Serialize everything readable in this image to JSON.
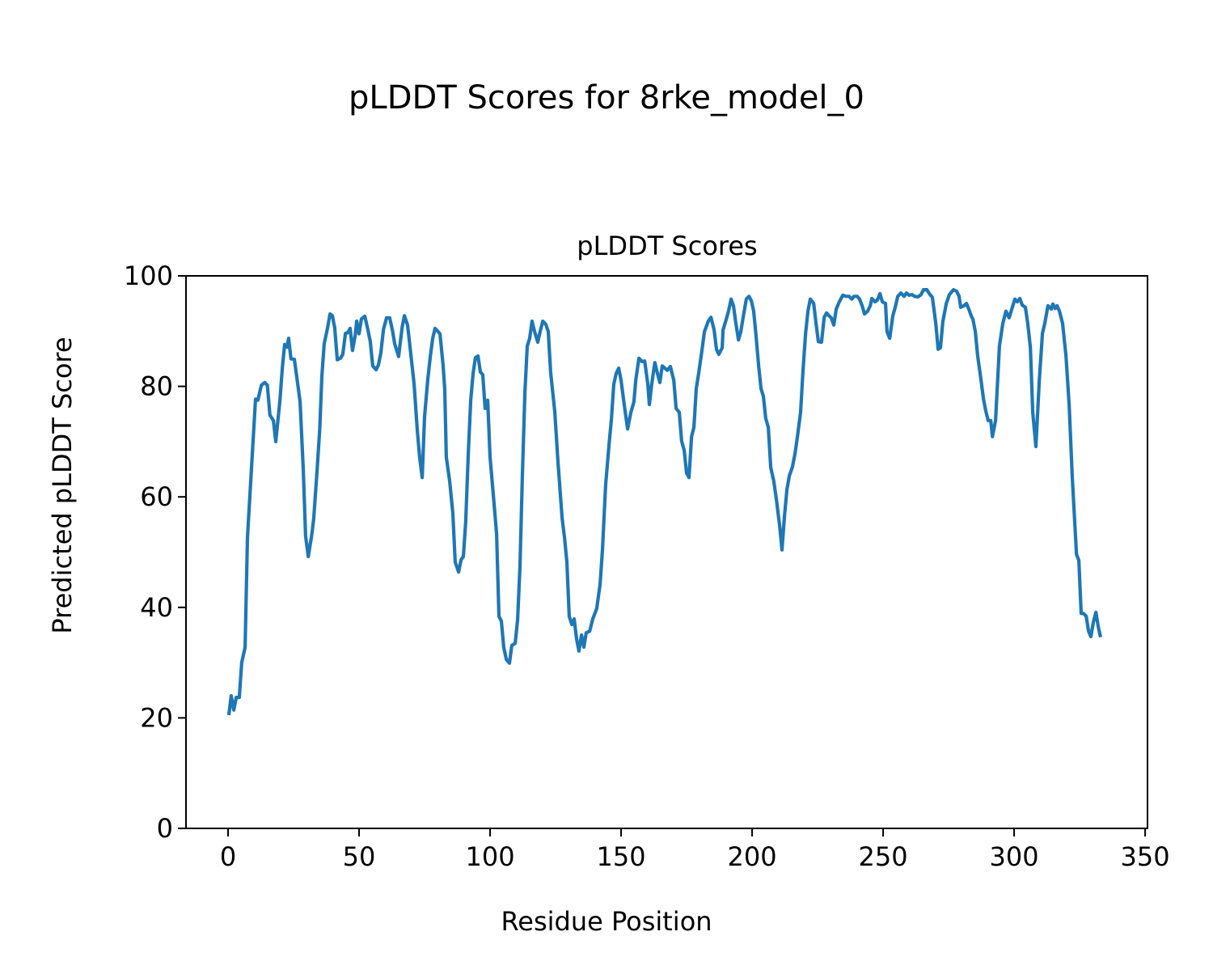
{
  "chart_data": {
    "type": "line",
    "suptitle": "pLDDT Scores for 8rke_model_0",
    "title": "pLDDT Scores",
    "xlabel": "Residue Position",
    "ylabel": "Predicted pLDDT Score",
    "xlim": [
      -16.05,
      350.9
    ],
    "ylim": [
      0,
      100
    ],
    "xticks": [
      0,
      50,
      100,
      150,
      200,
      250,
      300,
      350
    ],
    "yticks": [
      0,
      20,
      40,
      60,
      80,
      100
    ],
    "xtick_labels": [
      "0",
      "50",
      "100",
      "150",
      "200",
      "250",
      "300",
      "350"
    ],
    "ytick_labels": [
      "0",
      "20",
      "40",
      "60",
      "80",
      "100"
    ],
    "grid": false,
    "series": [
      {
        "name": "pLDDT",
        "color": "#1f77b4",
        "x": [
          0.3,
          1.2,
          2.2,
          3.1,
          4.3,
          5.2,
          6.5,
          7.4,
          9.3,
          10.5,
          11.4,
          12.7,
          14,
          15,
          16,
          17.3,
          18.2,
          19.8,
          20.7,
          21.6,
          22.5,
          23.1,
          24,
          25.3,
          26.5,
          27.5,
          28.7,
          29.6,
          30.6,
          32,
          32.7,
          34,
          35,
          35.8,
          36.7,
          38,
          38.9,
          39.8,
          40.7,
          41.7,
          42.9,
          43.8,
          44.8,
          45.7,
          46.6,
          47.5,
          48.5,
          49.1,
          50,
          50.9,
          52.2,
          53.4,
          54.3,
          55.2,
          56.5,
          57.4,
          58.3,
          59.3,
          60.5,
          61.7,
          62.7,
          63.6,
          65.1,
          66.4,
          67.3,
          68.5,
          69.4,
          71,
          72.2,
          73.1,
          74.1,
          75,
          76.2,
          77.2,
          78.1,
          79,
          80,
          80.9,
          82.1,
          82.7,
          83.3,
          84.6,
          85.8,
          86.7,
          88,
          88.9,
          89.8,
          90.7,
          91.7,
          92.6,
          93.5,
          94.4,
          95.4,
          96.3,
          97.2,
          98.1,
          99.1,
          100,
          101.2,
          102.5,
          103.4,
          104.3,
          105.2,
          106.2,
          107.4,
          108.3,
          109.6,
          110.5,
          111.4,
          112.3,
          113.3,
          114.2,
          115.1,
          116,
          117,
          118.2,
          119.1,
          120.1,
          121.3,
          122.2,
          123.1,
          124.7,
          125.9,
          127.5,
          128.4,
          129.3,
          130.2,
          131.2,
          132.1,
          133,
          133.9,
          134.9,
          135.8,
          136.7,
          138,
          139.2,
          140.7,
          142,
          142.9,
          144.1,
          145.4,
          146.3,
          147.2,
          148.1,
          149.1,
          150,
          151.2,
          152.5,
          153.7,
          154.9,
          155.6,
          156.8,
          158,
          159,
          160.2,
          160.8,
          161.7,
          162.9,
          163.9,
          164.8,
          165.7,
          166.7,
          167.6,
          168.8,
          170.1,
          171,
          172.2,
          173.1,
          174.1,
          175,
          175.9,
          176.9,
          177.8,
          178.7,
          179.6,
          180.9,
          181.8,
          183.3,
          184.3,
          185.5,
          186.4,
          187.3,
          188.6,
          188.9,
          190.1,
          191,
          192,
          192.9,
          193.8,
          194.8,
          195.7,
          196.6,
          197.8,
          198.8,
          199.7,
          200.6,
          201.5,
          202.5,
          203.4,
          204.3,
          205.2,
          206.2,
          207.1,
          208.3,
          209.3,
          210.5,
          211.4,
          212.3,
          213.3,
          214.2,
          215.4,
          216.4,
          217.3,
          218.5,
          219.4,
          220.4,
          221.3,
          222.2,
          223.5,
          224.4,
          225.3,
          226.5,
          227.5,
          228.4,
          229.3,
          230.2,
          231.2,
          232.1,
          233.3,
          234.6,
          235.8,
          237,
          238,
          238.9,
          240.1,
          241,
          242,
          242.9,
          244.1,
          245.1,
          245.7,
          246.9,
          247.8,
          248.8,
          249.7,
          250.9,
          251.5,
          252.5,
          253.7,
          254.6,
          255.6,
          256.8,
          258,
          258.9,
          259.9,
          261.1,
          262,
          263.3,
          264.5,
          265.4,
          266.7,
          267.6,
          268.8,
          270.1,
          271,
          271.9,
          272.8,
          274.1,
          275.3,
          276.9,
          278.1,
          279,
          279.6,
          280.9,
          281.8,
          282.7,
          283.6,
          284.3,
          285.2,
          286.1,
          287.3,
          288.3,
          289.2,
          290.1,
          291.1,
          291.7,
          292.9,
          294.4,
          295.7,
          296.9,
          298.1,
          299.1,
          300.3,
          301.2,
          302.2,
          303.1,
          304.3,
          305.2,
          306.2,
          307.1,
          308.3,
          309.6,
          310.8,
          311.7,
          312.9,
          314.2,
          314.8,
          315.7,
          316.4,
          317.3,
          318.5,
          319.8,
          321,
          322.2,
          323.8,
          324.7,
          325.6,
          326.5,
          327.5,
          328.4,
          329.3,
          330.2,
          331.2,
          332.1,
          333
        ],
        "y": [
          20.5,
          24,
          21.4,
          23.7,
          23.7,
          30,
          32.8,
          52.6,
          68,
          77.7,
          77.5,
          80.2,
          80.7,
          80.2,
          74.8,
          73.8,
          70,
          77.5,
          83.3,
          87.6,
          87.1,
          88.7,
          85,
          84.9,
          80.7,
          77.2,
          65,
          52.9,
          49.2,
          53.3,
          56.2,
          65,
          72.3,
          81.8,
          87.7,
          90.6,
          93.1,
          92.8,
          90.6,
          84.8,
          85.1,
          85.8,
          89.6,
          89.7,
          90.5,
          86.5,
          89.2,
          91.8,
          89.5,
          92.2,
          92.7,
          90.2,
          88.1,
          83.7,
          83,
          83.9,
          86,
          90.3,
          92.4,
          92.4,
          90.2,
          87.7,
          85.4,
          90.6,
          92.8,
          91.1,
          87.3,
          80.4,
          72.3,
          67.2,
          63.5,
          74.5,
          81.1,
          85.5,
          88.7,
          90.5,
          90,
          89.5,
          83.7,
          79.4,
          67.2,
          62.8,
          57,
          48.2,
          46.4,
          48.6,
          49.2,
          55.5,
          67.9,
          77.5,
          82.3,
          85.2,
          85.5,
          82.6,
          82.1,
          76,
          77.5,
          67.2,
          60.6,
          53.3,
          38.4,
          37.5,
          32.8,
          30.6,
          29.9,
          33.1,
          33.5,
          37.8,
          47.4,
          63.5,
          78.9,
          87.3,
          88.7,
          91.8,
          89.9,
          88,
          89.9,
          91.8,
          91.2,
          89.9,
          82.6,
          75.3,
          66.5,
          56.2,
          52.6,
          48.2,
          38.4,
          36.9,
          37.9,
          34.3,
          32.1,
          35,
          32.8,
          35.4,
          35.7,
          37.9,
          39.8,
          44.2,
          50.4,
          62.1,
          69.4,
          74.1,
          80.4,
          82.3,
          83.3,
          81.1,
          76.7,
          72.3,
          75.2,
          77.2,
          81.1,
          85.1,
          84.5,
          84.6,
          80.4,
          76.7,
          80.4,
          84.3,
          82.3,
          80.7,
          83.7,
          83.3,
          82.9,
          83.6,
          81.1,
          76,
          75.3,
          70.1,
          68.4,
          64.3,
          63.5,
          70.9,
          72.6,
          79.6,
          82.3,
          86.7,
          89.9,
          91.8,
          92.5,
          90.2,
          86.7,
          85.8,
          87,
          90.2,
          92.1,
          93.6,
          95.8,
          94.6,
          91.4,
          88.4,
          89.9,
          92.5,
          95.8,
          96.3,
          95.5,
          93.6,
          89.2,
          83.6,
          79.6,
          78.2,
          74.2,
          72.6,
          65.3,
          62.8,
          59.4,
          54.8,
          50.4,
          56.2,
          61.3,
          63.8,
          65.4,
          67.9,
          70.9,
          75.3,
          82.6,
          89.6,
          93.6,
          95.8,
          95,
          91.4,
          88.1,
          88,
          92.5,
          93.3,
          92.8,
          92.4,
          91.1,
          94,
          95.3,
          96.5,
          96.3,
          96.3,
          95.8,
          96.3,
          96.3,
          95.8,
          94.6,
          93.1,
          93.6,
          94.6,
          95.9,
          95.3,
          95.6,
          96.8,
          95.3,
          95,
          89.9,
          88.7,
          92.8,
          94.3,
          96.3,
          96.9,
          96.3,
          96.9,
          96.5,
          96.6,
          96.3,
          96.2,
          96.6,
          97.5,
          97.5,
          96.8,
          96.1,
          91.4,
          86.7,
          87,
          91.7,
          95,
          96.6,
          97.5,
          97.2,
          96.3,
          94.3,
          94.6,
          95,
          94,
          92.8,
          92.1,
          89.9,
          85.5,
          81.4,
          77.7,
          75.5,
          73.8,
          73.8,
          70.9,
          73.8,
          87.3,
          91.4,
          93.6,
          92.4,
          94,
          95.8,
          95.3,
          95.9,
          94.7,
          94.3,
          91.4,
          87,
          75.3,
          69.1,
          81.1,
          89.6,
          91.4,
          94.6,
          94,
          94.9,
          94.1,
          94.6,
          93.6,
          91.4,
          85.5,
          76.7,
          63.5,
          49.6,
          48.5,
          38.9,
          38.9,
          38.4,
          35.7,
          34.7,
          37.2,
          39.1,
          36.5,
          34.6
        ]
      }
    ]
  }
}
